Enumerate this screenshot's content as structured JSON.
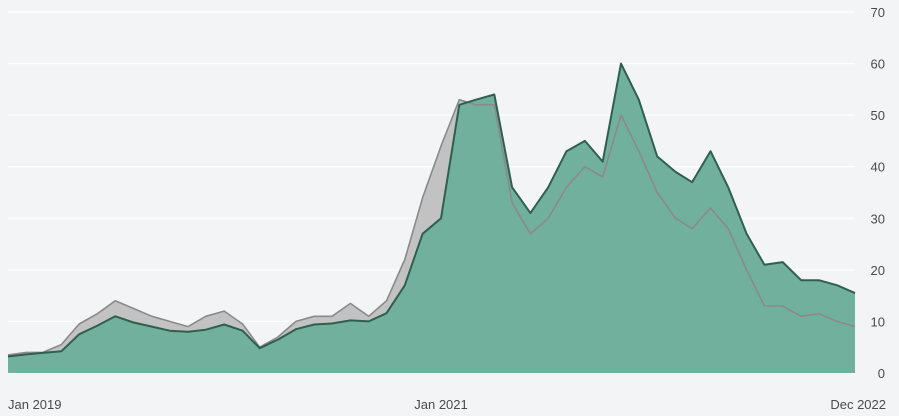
{
  "chart_data": {
    "type": "area",
    "x_tick_labels": [
      "Jan 2019",
      "Jan 2021",
      "Dec 2022"
    ],
    "y_ticks": [
      0,
      10,
      20,
      30,
      40,
      50,
      60,
      70
    ],
    "ylim": [
      0,
      70
    ],
    "y_axis_position": "right",
    "grid": true,
    "colors": {
      "background": "#f3f4f6",
      "grid": "#ffffff",
      "primary_fill": "#72b09e",
      "primary_line": "#2f5f4d",
      "secondary_fill": "#bdbdbd",
      "secondary_line": "#8a8a8a",
      "secondary_over_primary": "#8fc2b0"
    },
    "x_dates": [
      "2019-01",
      "2019-02",
      "2019-03",
      "2019-04",
      "2019-05",
      "2019-06",
      "2019-07",
      "2019-08",
      "2019-09",
      "2019-10",
      "2019-11",
      "2019-12",
      "2020-01",
      "2020-02",
      "2020-03",
      "2020-04",
      "2020-05",
      "2020-06",
      "2020-07",
      "2020-08",
      "2020-09",
      "2020-10",
      "2020-11",
      "2020-12",
      "2021-01",
      "2021-02",
      "2021-03",
      "2021-04",
      "2021-05",
      "2021-06",
      "2021-07",
      "2021-08",
      "2021-09",
      "2021-10",
      "2021-11",
      "2021-12",
      "2022-01",
      "2022-02",
      "2022-03",
      "2022-04",
      "2022-05",
      "2022-06",
      "2022-07",
      "2022-08",
      "2022-09",
      "2022-10",
      "2022-11",
      "2022-12"
    ],
    "series": [
      {
        "values": [
          3.2,
          3.6,
          3.9,
          4.2,
          7.5,
          9.2,
          11.0,
          9.8,
          9.0,
          8.2,
          8.0,
          8.4,
          9.4,
          8.2,
          4.8,
          6.5,
          8.5,
          9.4,
          9.6,
          10.2,
          10.0,
          11.6,
          17.0,
          27.0,
          30.0,
          52.0,
          53.0,
          54.0,
          36.0,
          31.0,
          36.0,
          43.0,
          45.0,
          41.0,
          60.0,
          53.0,
          42.0,
          39.0,
          37.0,
          43.0,
          36.0,
          27.0,
          21.0,
          21.5,
          18.0,
          18.0,
          17.0,
          15.5
        ]
      },
      {
        "values": [
          3.5,
          4.0,
          4.0,
          5.5,
          9.5,
          11.5,
          14.0,
          12.5,
          11.0,
          10.0,
          9.0,
          11.0,
          12.0,
          9.5,
          5.0,
          7.0,
          10.0,
          11.0,
          11.0,
          13.5,
          11.0,
          14.0,
          22.0,
          34.0,
          44.0,
          53.0,
          52.0,
          52.0,
          33.0,
          27.0,
          30.0,
          36.0,
          40.0,
          38.0,
          50.0,
          43.0,
          35.0,
          30.0,
          28.0,
          32.0,
          28.0,
          20.0,
          13.0,
          13.0,
          11.0,
          11.5,
          10.0,
          9.0
        ]
      }
    ]
  }
}
